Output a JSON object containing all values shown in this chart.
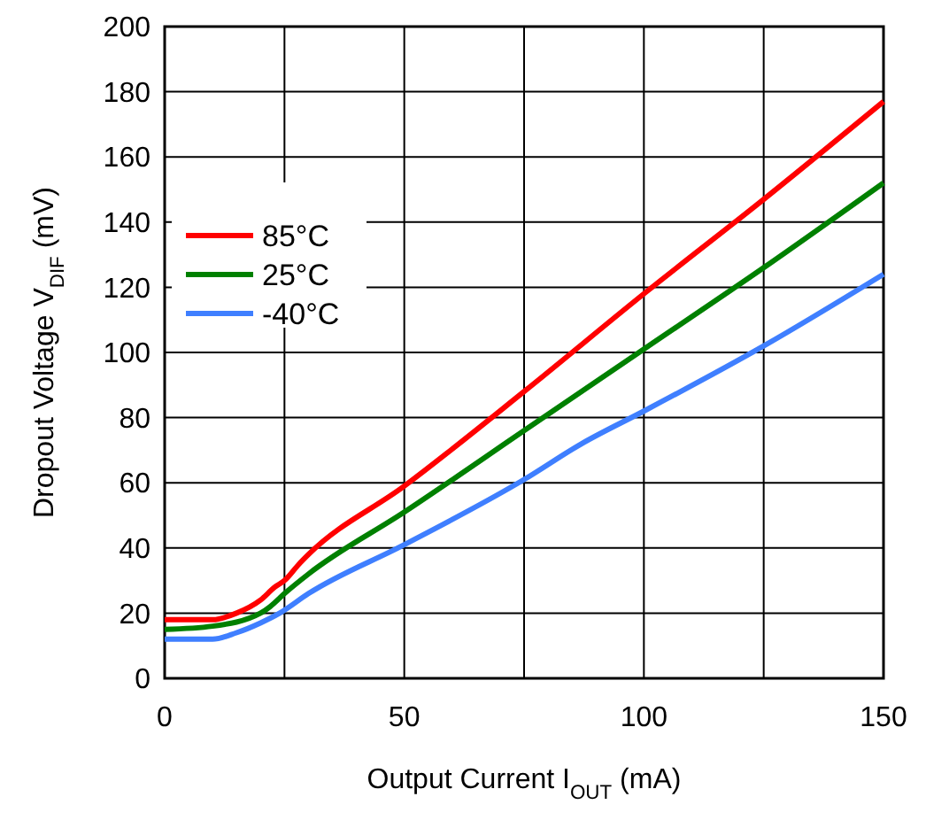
{
  "chart_data": {
    "type": "line",
    "xlabel": "Output Current I$_{OUT}$ (mA)",
    "ylabel": "Dropout Voltage V$_{DIF}$ (mV)",
    "xlim": [
      0,
      150
    ],
    "xticks": [
      0,
      50,
      100,
      150
    ],
    "ylim": [
      0,
      200
    ],
    "yticks": [
      0,
      20,
      40,
      60,
      80,
      100,
      120,
      140,
      160,
      180,
      200
    ],
    "grid": true,
    "legend": "top left",
    "line_style": "solid",
    "marker": "none",
    "series": [
      {
        "name": "85°C",
        "color": "#ff0000",
        "x": [
          0,
          10,
          15,
          20,
          23,
          25,
          28,
          30,
          50,
          75,
          100,
          125,
          150
        ],
        "values": [
          18,
          18,
          20,
          24,
          28,
          30,
          35,
          38,
          59,
          88,
          118,
          147,
          177
        ]
      },
      {
        "name": "25°C",
        "color": "#008000",
        "x": [
          0,
          10,
          20,
          22,
          25,
          30,
          50,
          75,
          100,
          125,
          150
        ],
        "values": [
          15,
          16,
          20,
          22,
          26,
          32,
          51,
          76,
          101,
          126,
          152
        ]
      },
      {
        "name": "-40°C",
        "color": "#3f7fff",
        "x": [
          0,
          10,
          15,
          20,
          24,
          30,
          50,
          75,
          87,
          100,
          125,
          150
        ],
        "values": [
          12,
          12,
          14,
          17,
          20,
          26,
          41,
          61,
          72,
          82,
          102,
          124
        ]
      }
    ]
  }
}
